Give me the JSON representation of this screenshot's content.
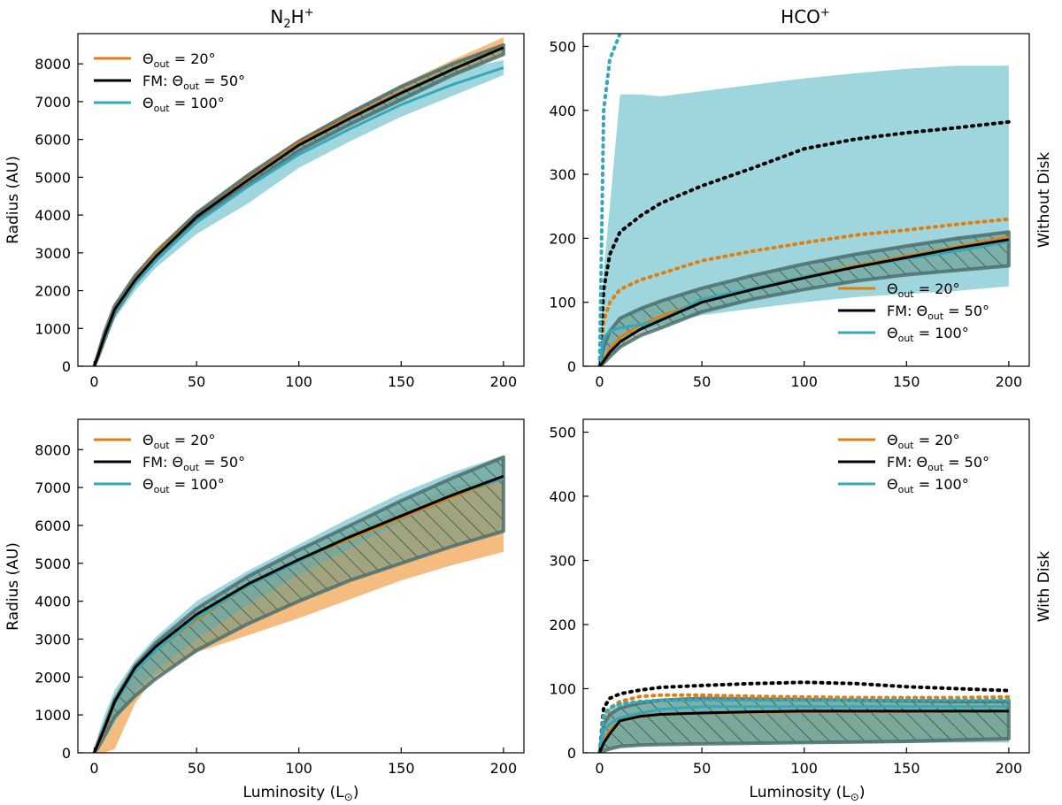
{
  "figure": {
    "col_titles": [
      {
        "main": "N",
        "sub": "2",
        "rest": "H",
        "sup": "+"
      },
      {
        "main": "HCO",
        "sup": "+"
      }
    ],
    "row_labels": [
      "Without Disk",
      "With Disk"
    ],
    "ylabel": "Radius (AU)",
    "xlabel_main": "Luminosity (L",
    "xlabel_sub": "⊙",
    "xlabel_close": ")",
    "legend": [
      {
        "pre": "",
        "sym": "Θ",
        "sub": "out",
        "post": " = 20°",
        "color": "#e07f10"
      },
      {
        "pre": "FM: ",
        "sym": "Θ",
        "sub": "out",
        "post": " = 50°",
        "color": "#000000"
      },
      {
        "pre": "",
        "sym": "Θ",
        "sub": "out",
        "post": " = 100°",
        "color": "#34a8b8"
      }
    ],
    "colors": {
      "orange": "#e07f10",
      "orange_band": "#f3b06a",
      "black": "#000000",
      "teal": "#34a8b8",
      "teal_band": "#7fc8d2",
      "hatch_fill": "#5f8f7f",
      "hatch_edge": "#4e6e6e"
    }
  },
  "chart_data": [
    {
      "type": "line",
      "panel": "N2H+ without disk",
      "xlim": [
        -8,
        210
      ],
      "ylim": [
        0,
        8800
      ],
      "xticks": [
        0,
        50,
        100,
        150,
        200
      ],
      "yticks": [
        0,
        1000,
        2000,
        3000,
        4000,
        5000,
        6000,
        7000,
        8000
      ],
      "x": [
        0,
        2,
        5,
        10,
        20,
        30,
        50,
        75,
        100,
        125,
        150,
        175,
        200
      ],
      "series": [
        {
          "name": "Θout = 20°",
          "values": [
            0,
            300,
            800,
            1500,
            2300,
            2950,
            3950,
            4950,
            5900,
            6600,
            7250,
            7850,
            8450
          ],
          "band_low": [
            0,
            250,
            700,
            1400,
            2200,
            2850,
            3850,
            4850,
            5750,
            6450,
            7100,
            7700,
            8250
          ],
          "band_high": [
            0,
            350,
            900,
            1650,
            2450,
            3100,
            4100,
            5100,
            6000,
            6750,
            7450,
            8100,
            8700
          ]
        },
        {
          "name": "FM: Θout = 50°",
          "values": [
            0,
            300,
            800,
            1500,
            2280,
            2900,
            3950,
            4920,
            5850,
            6560,
            7230,
            7850,
            8430
          ],
          "band_low": [
            0,
            250,
            700,
            1400,
            2200,
            2800,
            3850,
            4800,
            5700,
            6400,
            7050,
            7700,
            8250
          ],
          "band_high": [
            0,
            350,
            900,
            1600,
            2400,
            3000,
            4050,
            5050,
            5950,
            6700,
            7400,
            8000,
            8500
          ]
        },
        {
          "name": "Θout = 100°",
          "values": [
            0,
            280,
            760,
            1450,
            2200,
            2800,
            3800,
            4750,
            5600,
            6280,
            6920,
            7450,
            7900
          ],
          "band_low": [
            0,
            200,
            600,
            1250,
            2000,
            2600,
            3500,
            4300,
            5250,
            5950,
            6600,
            7150,
            7700
          ],
          "band_high": [
            0,
            350,
            900,
            1600,
            2400,
            3000,
            4050,
            5000,
            5900,
            6600,
            7250,
            7800,
            8100
          ]
        }
      ]
    },
    {
      "type": "line",
      "panel": "HCO+ without disk",
      "xlim": [
        -8,
        210
      ],
      "ylim": [
        0,
        520
      ],
      "xticks": [
        0,
        50,
        100,
        150,
        200
      ],
      "yticks": [
        0,
        100,
        200,
        300,
        400,
        500
      ],
      "x": [
        0,
        2,
        5,
        10,
        20,
        30,
        50,
        75,
        100,
        125,
        150,
        175,
        200
      ],
      "series": [
        {
          "name": "Θout = 20°",
          "values": [
            0,
            10,
            28,
            45,
            65,
            78,
            102,
            122,
            140,
            157,
            172,
            187,
            202
          ],
          "dotted": [
            0,
            70,
            100,
            120,
            135,
            145,
            165,
            180,
            193,
            205,
            213,
            222,
            230
          ]
        },
        {
          "name": "FM: Θout = 50°",
          "values": [
            0,
            8,
            22,
            38,
            58,
            72,
            100,
            120,
            138,
            155,
            170,
            185,
            198
          ],
          "dotted": [
            0,
            120,
            175,
            210,
            235,
            255,
            282,
            310,
            340,
            355,
            365,
            373,
            382
          ],
          "band_low": [
            0,
            5,
            15,
            30,
            48,
            60,
            85,
            105,
            120,
            133,
            143,
            150,
            157
          ],
          "band_high": [
            0,
            30,
            55,
            75,
            90,
            102,
            122,
            142,
            160,
            175,
            188,
            200,
            210
          ]
        },
        {
          "name": "Θout = 100°",
          "values": [
            0,
            45,
            55,
            60,
            65,
            72,
            105,
            122,
            140,
            155,
            168,
            180,
            195
          ],
          "dotted": [
            0,
            400,
            480,
            520
          ],
          "dotted_x": [
            0,
            2,
            5,
            10
          ],
          "band_low": [
            0,
            20,
            30,
            40,
            55,
            65,
            80,
            90,
            100,
            108,
            113,
            118,
            125
          ],
          "band_high": [
            0,
            150,
            250,
            425,
            425,
            422,
            430,
            440,
            450,
            458,
            465,
            470,
            470
          ]
        }
      ]
    },
    {
      "type": "line",
      "panel": "N2H+ with disk",
      "xlim": [
        -8,
        210
      ],
      "ylim": [
        0,
        8800
      ],
      "xticks": [
        0,
        50,
        100,
        150,
        200
      ],
      "yticks": [
        0,
        1000,
        2000,
        3000,
        4000,
        5000,
        6000,
        7000,
        8000
      ],
      "x": [
        0,
        2,
        5,
        10,
        20,
        30,
        50,
        75,
        100,
        125,
        150,
        175,
        200
      ],
      "series": [
        {
          "name": "Θout = 20°",
          "values": [
            0,
            200,
            600,
            1300,
            2150,
            2700,
            3500,
            4400,
            5050,
            5650,
            6200,
            6750,
            7250
          ],
          "band_low": [
            0,
            0,
            0,
            100,
            1300,
            2050,
            2650,
            3100,
            3550,
            4050,
            4550,
            4950,
            5300
          ],
          "band_high": [
            0,
            250,
            750,
            1450,
            2250,
            2800,
            3600,
            4350,
            5100,
            5800,
            6450,
            7000,
            7300
          ]
        },
        {
          "name": "FM: Θout = 50°",
          "values": [
            0,
            250,
            650,
            1350,
            2250,
            2800,
            3650,
            4450,
            5100,
            5700,
            6250,
            6800,
            7300
          ],
          "band_low": [
            0,
            150,
            450,
            950,
            1500,
            1950,
            2700,
            3400,
            4000,
            4550,
            5000,
            5450,
            5850
          ],
          "band_high": [
            0,
            300,
            700,
            1400,
            2300,
            2900,
            3800,
            4650,
            5350,
            6000,
            6650,
            7250,
            7800
          ]
        },
        {
          "name": "Θout = 100°",
          "values": [
            0,
            250,
            650,
            1300,
            2150,
            2700,
            3550,
            4400,
            5050,
            5700,
            6250,
            6800,
            7250
          ],
          "band_low": [
            0,
            100,
            300,
            800,
            1600,
            2150,
            3000,
            3900,
            4700,
            5400,
            6100,
            6700,
            7200
          ],
          "band_high": [
            0,
            500,
            1000,
            1650,
            2450,
            3050,
            4000,
            4800,
            5500,
            6200,
            6850,
            7400,
            7850
          ]
        }
      ]
    },
    {
      "type": "line",
      "panel": "HCO+ with disk",
      "xlim": [
        -8,
        210
      ],
      "ylim": [
        0,
        520
      ],
      "xticks": [
        0,
        50,
        100,
        150,
        200
      ],
      "yticks": [
        0,
        100,
        200,
        300,
        400,
        500
      ],
      "x": [
        0,
        2,
        5,
        10,
        20,
        30,
        50,
        75,
        100,
        125,
        150,
        175,
        200
      ],
      "series": [
        {
          "name": "Θout = 20°",
          "values": [
            0,
            20,
            35,
            50,
            58,
            60,
            62,
            63,
            64,
            64,
            64,
            65,
            65
          ],
          "dotted": [
            0,
            55,
            70,
            80,
            88,
            90,
            90,
            88,
            87,
            86,
            86,
            86,
            87
          ],
          "band_low": [
            0,
            5,
            8,
            10,
            12,
            13,
            14,
            14,
            15,
            15,
            16,
            16,
            17
          ],
          "band_high": [
            0,
            25,
            40,
            55,
            62,
            64,
            66,
            66,
            66,
            66,
            66,
            66,
            66
          ]
        },
        {
          "name": "FM: Θout = 50°",
          "values": [
            0,
            15,
            30,
            50,
            57,
            60,
            62,
            64,
            65,
            65,
            65,
            65,
            65
          ],
          "dotted": [
            0,
            70,
            85,
            92,
            98,
            102,
            105,
            108,
            110,
            108,
            103,
            100,
            97
          ],
          "band_low": [
            0,
            3,
            6,
            10,
            12,
            13,
            14,
            15,
            16,
            17,
            18,
            20,
            22
          ],
          "band_high": [
            0,
            45,
            60,
            70,
            78,
            82,
            85,
            84,
            83,
            82,
            81,
            80,
            80
          ]
        },
        {
          "name": "Θout = 100°",
          "values": [
            0,
            35,
            45,
            55,
            62,
            68,
            72,
            72,
            72,
            72,
            72,
            72,
            72
          ],
          "dotted": [
            0,
            60,
            70,
            76,
            80,
            82,
            82,
            82,
            82,
            82,
            82,
            82,
            82
          ],
          "band_low": [
            0,
            5,
            8,
            10,
            12,
            13,
            14,
            14,
            15,
            15,
            15,
            16,
            16
          ],
          "band_high": [
            0,
            60,
            70,
            78,
            82,
            84,
            84,
            84,
            84,
            84,
            84,
            84,
            84
          ]
        }
      ]
    }
  ]
}
